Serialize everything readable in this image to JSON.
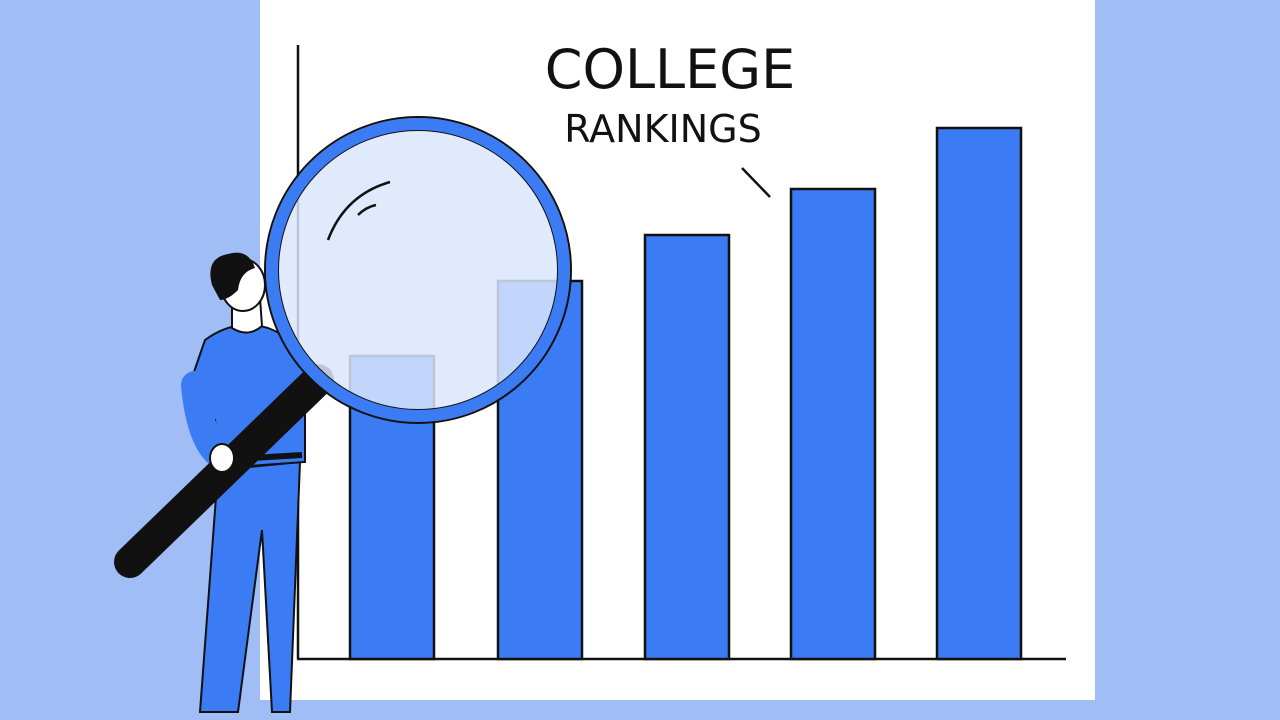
{
  "title": "COLLEGE",
  "subtitle": "RANKINGS"
}
